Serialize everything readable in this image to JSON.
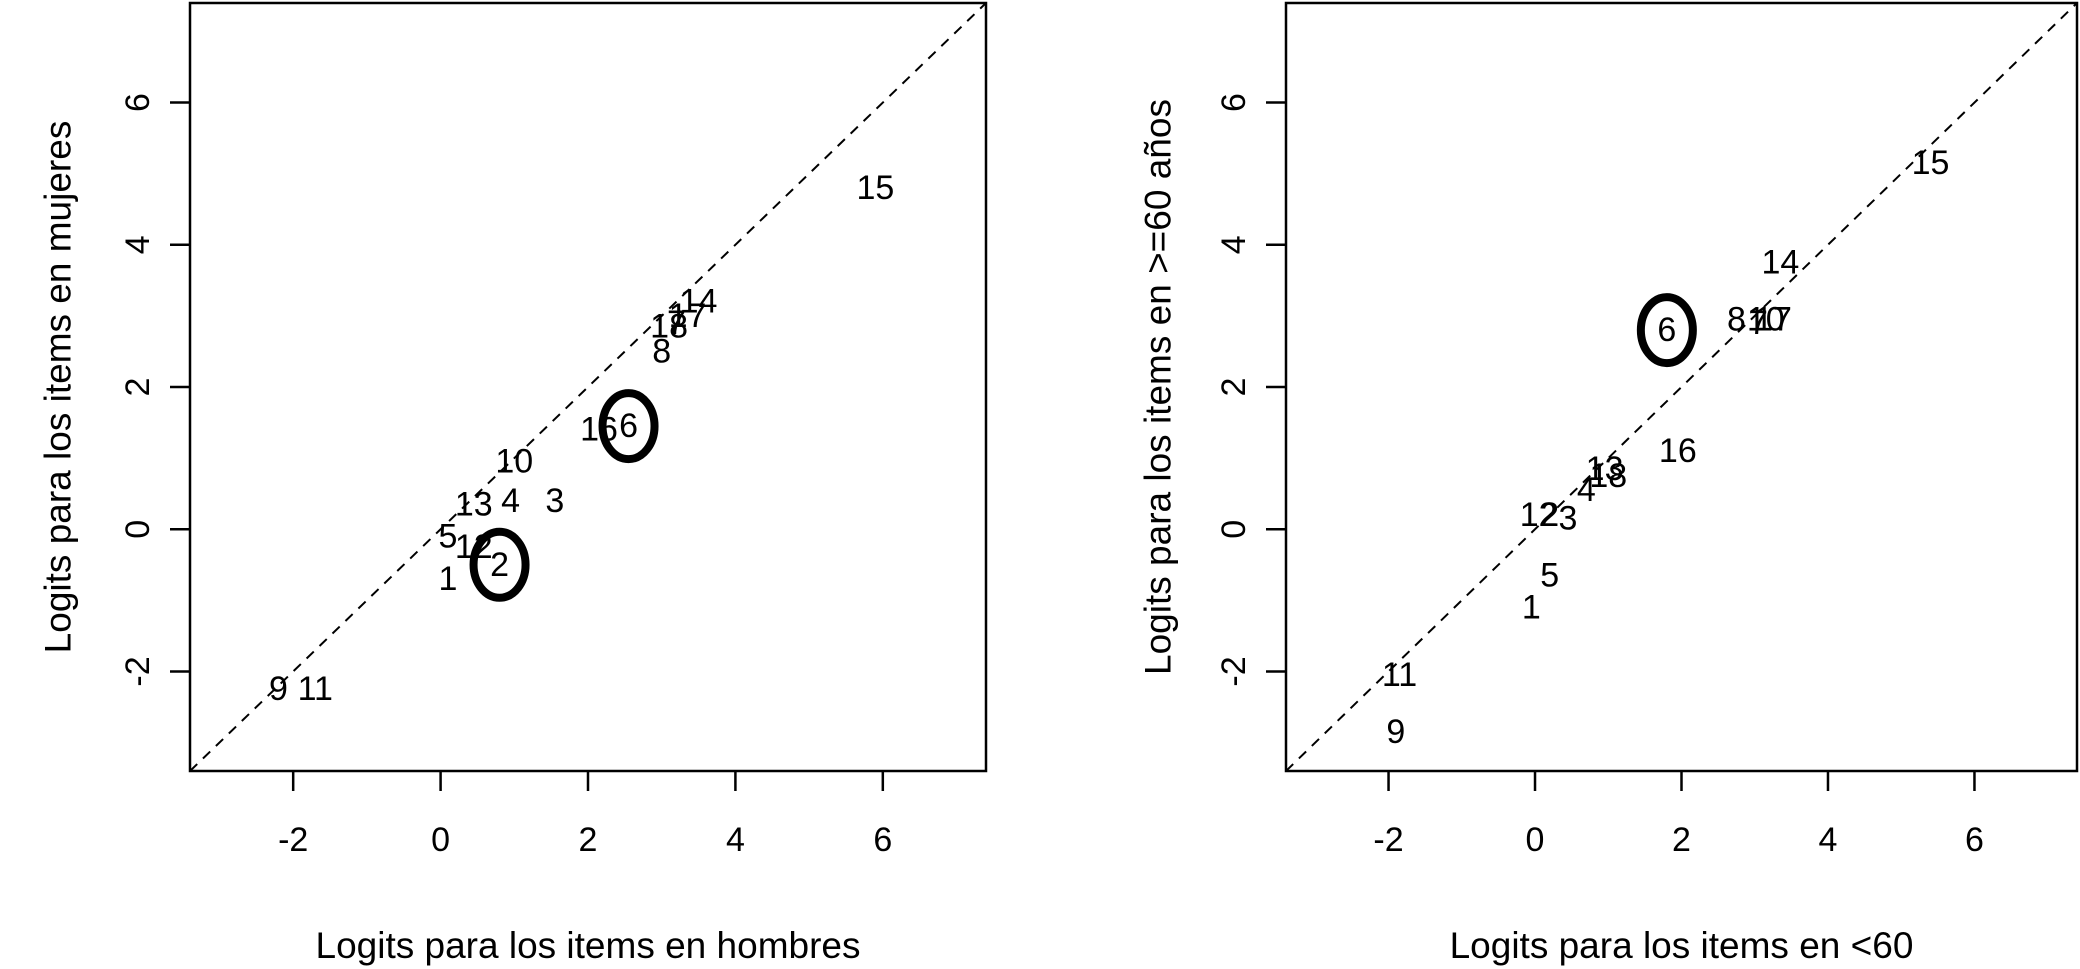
{
  "chart_data": [
    {
      "type": "scatter",
      "xlabel": "Logits para los items en hombres",
      "ylabel": "Logits para los items en mujeres",
      "xlim": [
        -3.4,
        7.4
      ],
      "ylim": [
        -3.4,
        7.4
      ],
      "xticks": [
        "-2",
        "0",
        "2",
        "4",
        "6"
      ],
      "yticks": [
        "-2",
        "0",
        "2",
        "4",
        "6"
      ],
      "reference_line": "y = x (dashed)",
      "highlighted_items": [
        "2",
        "6"
      ],
      "points": [
        {
          "label": "1",
          "x": 0.1,
          "y": -0.7
        },
        {
          "label": "2",
          "x": 0.8,
          "y": -0.5
        },
        {
          "label": "3",
          "x": 1.55,
          "y": 0.4
        },
        {
          "label": "4",
          "x": 0.95,
          "y": 0.4
        },
        {
          "label": "5",
          "x": 0.1,
          "y": -0.1
        },
        {
          "label": "6",
          "x": 2.55,
          "y": 1.45
        },
        {
          "label": "7",
          "x": 3.2,
          "y": 2.9
        },
        {
          "label": "8",
          "x": 3.0,
          "y": 2.5
        },
        {
          "label": "9",
          "x": -2.2,
          "y": -2.25
        },
        {
          "label": "10",
          "x": 1.0,
          "y": 0.95
        },
        {
          "label": "11",
          "x": -1.7,
          "y": -2.25
        },
        {
          "label": "12",
          "x": 0.45,
          "y": -0.25
        },
        {
          "label": "13",
          "x": 0.45,
          "y": 0.35
        },
        {
          "label": "14",
          "x": 3.5,
          "y": 3.2
        },
        {
          "label": "15",
          "x": 5.9,
          "y": 4.8
        },
        {
          "label": "16",
          "x": 2.15,
          "y": 1.4
        },
        {
          "label": "17",
          "x": 3.35,
          "y": 3.0
        },
        {
          "label": "18",
          "x": 3.1,
          "y": 2.85
        }
      ]
    },
    {
      "type": "scatter",
      "xlabel": "Logits para los items en <60",
      "ylabel": "Logits para los items en >=60 años",
      "xlim": [
        -3.4,
        7.4
      ],
      "ylim": [
        -3.4,
        7.4
      ],
      "xticks": [
        "-2",
        "0",
        "2",
        "4",
        "6"
      ],
      "yticks": [
        "-2",
        "0",
        "2",
        "4",
        "6"
      ],
      "reference_line": "y = x (dashed)",
      "highlighted_items": [
        "6"
      ],
      "points": [
        {
          "label": "1",
          "x": -0.05,
          "y": -1.1
        },
        {
          "label": "2",
          "x": 0.2,
          "y": 0.2
        },
        {
          "label": "3",
          "x": 0.45,
          "y": 0.15
        },
        {
          "label": "4",
          "x": 0.7,
          "y": 0.55
        },
        {
          "label": "5",
          "x": 0.2,
          "y": -0.65
        },
        {
          "label": "6",
          "x": 1.8,
          "y": 2.8
        },
        {
          "label": "7",
          "x": 3.05,
          "y": 2.9
        },
        {
          "label": "8",
          "x": 2.75,
          "y": 2.95
        },
        {
          "label": "9",
          "x": -1.9,
          "y": -2.85
        },
        {
          "label": "10",
          "x": 3.15,
          "y": 2.95
        },
        {
          "label": "11",
          "x": -1.85,
          "y": -2.05
        },
        {
          "label": "12",
          "x": 0.05,
          "y": 0.2
        },
        {
          "label": "13",
          "x": 0.95,
          "y": 0.85
        },
        {
          "label": "14",
          "x": 3.35,
          "y": 3.75
        },
        {
          "label": "15",
          "x": 5.4,
          "y": 5.15
        },
        {
          "label": "16",
          "x": 1.95,
          "y": 1.1
        },
        {
          "label": "17",
          "x": 3.25,
          "y": 2.95
        },
        {
          "label": "18",
          "x": 1.0,
          "y": 0.75
        }
      ]
    }
  ]
}
